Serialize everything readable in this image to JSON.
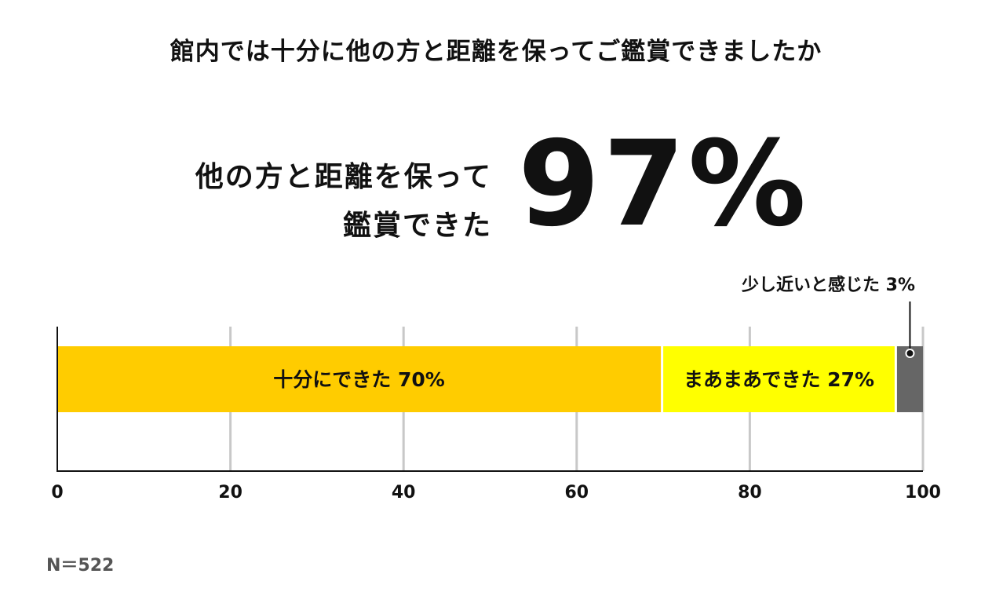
{
  "title": "館内では十分に他の方と距離を保ってご鑑賞できましたか",
  "headline": {
    "line1": "他の方と距離を保って",
    "line2": "鑑賞できた",
    "value": "97%"
  },
  "sample_size": "N＝522",
  "colors": {
    "segment1": "#FFCC00",
    "segment2": "#FFFF00",
    "segment3": "#666666",
    "grid": "#C8C8C8",
    "axis": "#111111"
  },
  "chart_data": {
    "type": "bar",
    "orientation": "horizontal-stacked",
    "xlim": [
      0,
      100
    ],
    "ticks": [
      0,
      20,
      40,
      60,
      80,
      100
    ],
    "grid": true,
    "segments": [
      {
        "label": "十分にできた 70%",
        "value": 70
      },
      {
        "label": "まあまあできた 27%",
        "value": 27
      },
      {
        "label": "少し近いと感じた 3%",
        "value": 3
      }
    ]
  }
}
